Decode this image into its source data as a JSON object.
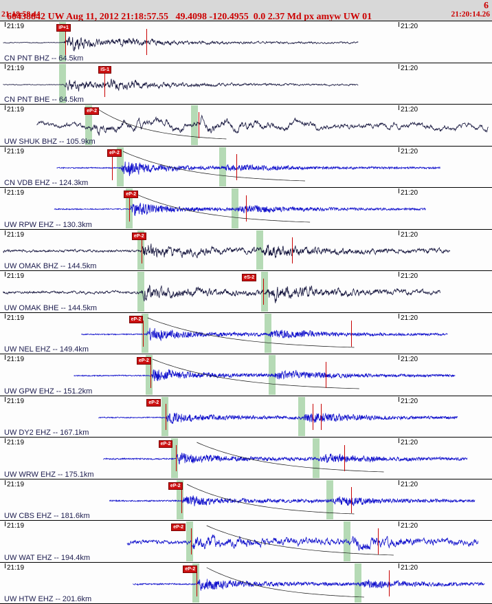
{
  "header": {
    "title": "60438842 UW Aug 11, 2012 21:18:57.55   49.4098 -120.4955  0.0 2.37 Md px amyw UW 01",
    "count": "6",
    "window_start": "21:18:58.44",
    "window_end": "21:20:14.26"
  },
  "colors": {
    "header_text": "#cc0000",
    "dark_trace": "#16163e",
    "blue_trace": "#1212cc",
    "pick_flag": "#cc1111",
    "green_band": "#b5dab5",
    "red_line": "#c80000",
    "station_label": "#1c1c4e"
  },
  "traces": [
    {
      "station": "CN PNT BHZ -- 64.5km",
      "left_time": "21:19",
      "right_time": "21:20",
      "color_key": "dark_trace",
      "pick_label": "iP+1",
      "flag_x": 0.115,
      "green_bands": [
        0.127
      ],
      "red_lines": [
        0.133,
        0.297
      ],
      "x0": 0.006,
      "x1": 0.728,
      "p": 0.131,
      "s": 0.228,
      "noise": 0.8,
      "p_amp": 17,
      "s_amp": 5,
      "coda": 3.5,
      "freq": "mid",
      "lf_mix": 1.2,
      "curve": null,
      "seed": 3
    },
    {
      "station": "CN PNT BHE -- 64.5km",
      "left_time": "21:19",
      "right_time": "21:20",
      "color_key": "dark_trace",
      "pick_label": "iS-1",
      "flag_x": 0.2,
      "green_bands": [
        0.127
      ],
      "red_lines": [
        0.212
      ],
      "x0": 0.006,
      "x1": 0.728,
      "p": 0.131,
      "s": 0.215,
      "noise": 0.8,
      "p_amp": 12,
      "s_amp": 8,
      "coda": 3.5,
      "freq": "mid",
      "lf_mix": 1.2,
      "curve": null,
      "seed": 7
    },
    {
      "station": "UW SHUK BHZ -- 105.9km",
      "left_time": "21:19",
      "right_time": "21:20",
      "color_key": "dark_trace",
      "pick_label": "eP-2",
      "flag_x": 0.172,
      "green_bands": [
        0.18,
        0.395
      ],
      "red_lines": [
        0.404
      ],
      "x0": 0.075,
      "x1": 0.993,
      "p": 0.183,
      "s": 0.4,
      "noise": 7,
      "p_amp": 5,
      "s_amp": 9,
      "coda": 5,
      "freq": "lo",
      "lf_mix": 1.6,
      "curve": [
        0.2,
        0.46
      ],
      "seed": 11
    },
    {
      "station": "CN VDB EHZ -- 124.3km",
      "left_time": "21:19",
      "right_time": "21:20",
      "color_key": "blue_trace",
      "pick_label": "eP-2",
      "flag_x": 0.218,
      "green_bands": [
        0.244,
        0.452
      ],
      "red_lines": [
        0.228,
        0.48
      ],
      "x0": 0.115,
      "x1": 0.895,
      "p": 0.247,
      "s": 0.455,
      "noise": 1.2,
      "p_amp": 18,
      "s_amp": 7,
      "coda": 3,
      "freq": "hi",
      "lf_mix": 1.0,
      "curve": [
        0.25,
        0.62
      ],
      "seed": 13
    },
    {
      "station": "UW RPW EHZ -- 130.3km",
      "left_time": "21:19",
      "right_time": "21:20",
      "color_key": "blue_trace",
      "pick_label": "eP-2",
      "flag_x": 0.252,
      "green_bands": [
        0.262,
        0.478
      ],
      "red_lines": [
        0.262,
        0.5
      ],
      "x0": 0.11,
      "x1": 0.865,
      "p": 0.265,
      "s": 0.481,
      "noise": 1.2,
      "p_amp": 16,
      "s_amp": 8,
      "coda": 3,
      "freq": "hi",
      "lf_mix": 1.0,
      "curve": [
        0.27,
        0.63
      ],
      "seed": 17
    },
    {
      "station": "UW OMAK BHZ -- 144.5km",
      "left_time": "21:19",
      "right_time": "21:20",
      "color_key": "dark_trace",
      "pick_label": "eP-2",
      "flag_x": 0.268,
      "green_bands": [
        0.286,
        0.528
      ],
      "red_lines": [
        0.287,
        0.594
      ],
      "x0": 0.006,
      "x1": 0.915,
      "p": 0.288,
      "s": 0.531,
      "noise": 2.5,
      "p_amp": 12,
      "s_amp": 12,
      "coda": 5,
      "freq": "mid",
      "lf_mix": 2.0,
      "curve": null,
      "seed": 19
    },
    {
      "station": "UW OMAK BHE -- 144.5km",
      "left_time": "21:19",
      "right_time": "21:20",
      "color_key": "dark_trace",
      "pick_label": "eS-2",
      "flag_x": 0.492,
      "green_bands": [
        0.286,
        0.538
      ],
      "red_lines": [
        0.535
      ],
      "x0": 0.006,
      "x1": 0.895,
      "p": 0.288,
      "s": 0.541,
      "noise": 2.5,
      "p_amp": 9,
      "s_amp": 14,
      "coda": 5,
      "freq": "mid",
      "lf_mix": 1.8,
      "curve": null,
      "seed": 23
    },
    {
      "station": "UW NEL EHZ -- 149.4km",
      "left_time": "21:19",
      "right_time": "21:20",
      "color_key": "blue_trace",
      "pick_label": "eP-2",
      "flag_x": 0.262,
      "green_bands": [
        0.295,
        0.545
      ],
      "red_lines": [
        0.29,
        0.713
      ],
      "x0": 0.165,
      "x1": 0.91,
      "p": 0.298,
      "s": 0.548,
      "noise": 1.2,
      "p_amp": 14,
      "s_amp": 9,
      "coda": 4,
      "freq": "hi",
      "lf_mix": 1.0,
      "curve": [
        0.3,
        0.72
      ],
      "seed": 29
    },
    {
      "station": "UW GPW EHZ -- 151.2km",
      "left_time": "21:19",
      "right_time": "21:20",
      "color_key": "blue_trace",
      "pick_label": "eP-2",
      "flag_x": 0.278,
      "green_bands": [
        0.303,
        0.553
      ],
      "red_lines": [
        0.306,
        0.662
      ],
      "x0": 0.15,
      "x1": 0.925,
      "p": 0.306,
      "s": 0.556,
      "noise": 1.2,
      "p_amp": 13,
      "s_amp": 9,
      "coda": 4,
      "freq": "hi",
      "lf_mix": 1.0,
      "curve": [
        0.31,
        0.73
      ],
      "seed": 31
    },
    {
      "station": "UW DY2 EHZ -- 167.1km",
      "left_time": "21:19",
      "right_time": "21:20",
      "color_key": "blue_trace",
      "pick_label": "eP-2",
      "flag_x": 0.298,
      "green_bands": [
        0.335,
        0.613
      ],
      "red_lines": [
        0.336,
        0.636,
        0.652
      ],
      "x0": 0.2,
      "x1": 0.93,
      "p": 0.338,
      "s": 0.616,
      "noise": 1.2,
      "p_amp": 11,
      "s_amp": 13,
      "coda": 3.5,
      "freq": "hi",
      "lf_mix": 1.0,
      "curve": null,
      "seed": 37
    },
    {
      "station": "UW WRW EHZ -- 175.1km",
      "left_time": "21:19",
      "right_time": "21:20",
      "color_key": "blue_trace",
      "pick_label": "eP-2",
      "flag_x": 0.322,
      "green_bands": [
        0.355,
        0.643
      ],
      "red_lines": [
        0.358,
        0.7
      ],
      "x0": 0.21,
      "x1": 0.95,
      "p": 0.358,
      "s": 0.646,
      "noise": 1.5,
      "p_amp": 13,
      "s_amp": 10,
      "coda": 3.5,
      "freq": "hi",
      "lf_mix": 1.0,
      "curve": [
        0.4,
        0.78
      ],
      "seed": 41
    },
    {
      "station": "UW CBS EHZ -- 181.6km",
      "left_time": "21:19",
      "right_time": "21:20",
      "color_key": "blue_trace",
      "pick_label": "eP-2",
      "flag_x": 0.342,
      "green_bands": [
        0.366,
        0.67
      ],
      "red_lines": [
        0.368,
        0.714
      ],
      "x0": 0.222,
      "x1": 0.965,
      "p": 0.369,
      "s": 0.673,
      "noise": 1.5,
      "p_amp": 11,
      "s_amp": 9,
      "coda": 3.5,
      "freq": "hi",
      "lf_mix": 1.0,
      "curve": [
        0.38,
        0.72
      ],
      "seed": 43
    },
    {
      "station": "UW WAT EHZ -- 194.4km",
      "left_time": "21:19",
      "right_time": "21:20",
      "color_key": "blue_trace",
      "pick_label": "eP-2",
      "flag_x": 0.348,
      "green_bands": [
        0.385,
        0.705
      ],
      "red_lines": [
        0.388,
        0.768
      ],
      "x0": 0.258,
      "x1": 0.972,
      "p": 0.388,
      "s": 0.708,
      "noise": 4,
      "p_amp": 7,
      "s_amp": 11,
      "coda": 4.5,
      "freq": "mid",
      "lf_mix": 1.8,
      "curve": [
        0.42,
        0.8
      ],
      "seed": 47
    },
    {
      "station": "UW HTW EHZ -- 201.6km",
      "left_time": "21:19",
      "right_time": "21:20",
      "color_key": "blue_trace",
      "pick_label": "eP-2",
      "flag_x": 0.372,
      "green_bands": [
        0.398,
        0.728
      ],
      "red_lines": [
        0.4,
        0.79
      ],
      "x0": 0.27,
      "x1": 0.985,
      "p": 0.401,
      "s": 0.731,
      "noise": 1.5,
      "p_amp": 11,
      "s_amp": 8,
      "coda": 4,
      "freq": "hi",
      "lf_mix": 1.0,
      "curve": [
        0.42,
        0.74
      ],
      "seed": 53
    }
  ]
}
